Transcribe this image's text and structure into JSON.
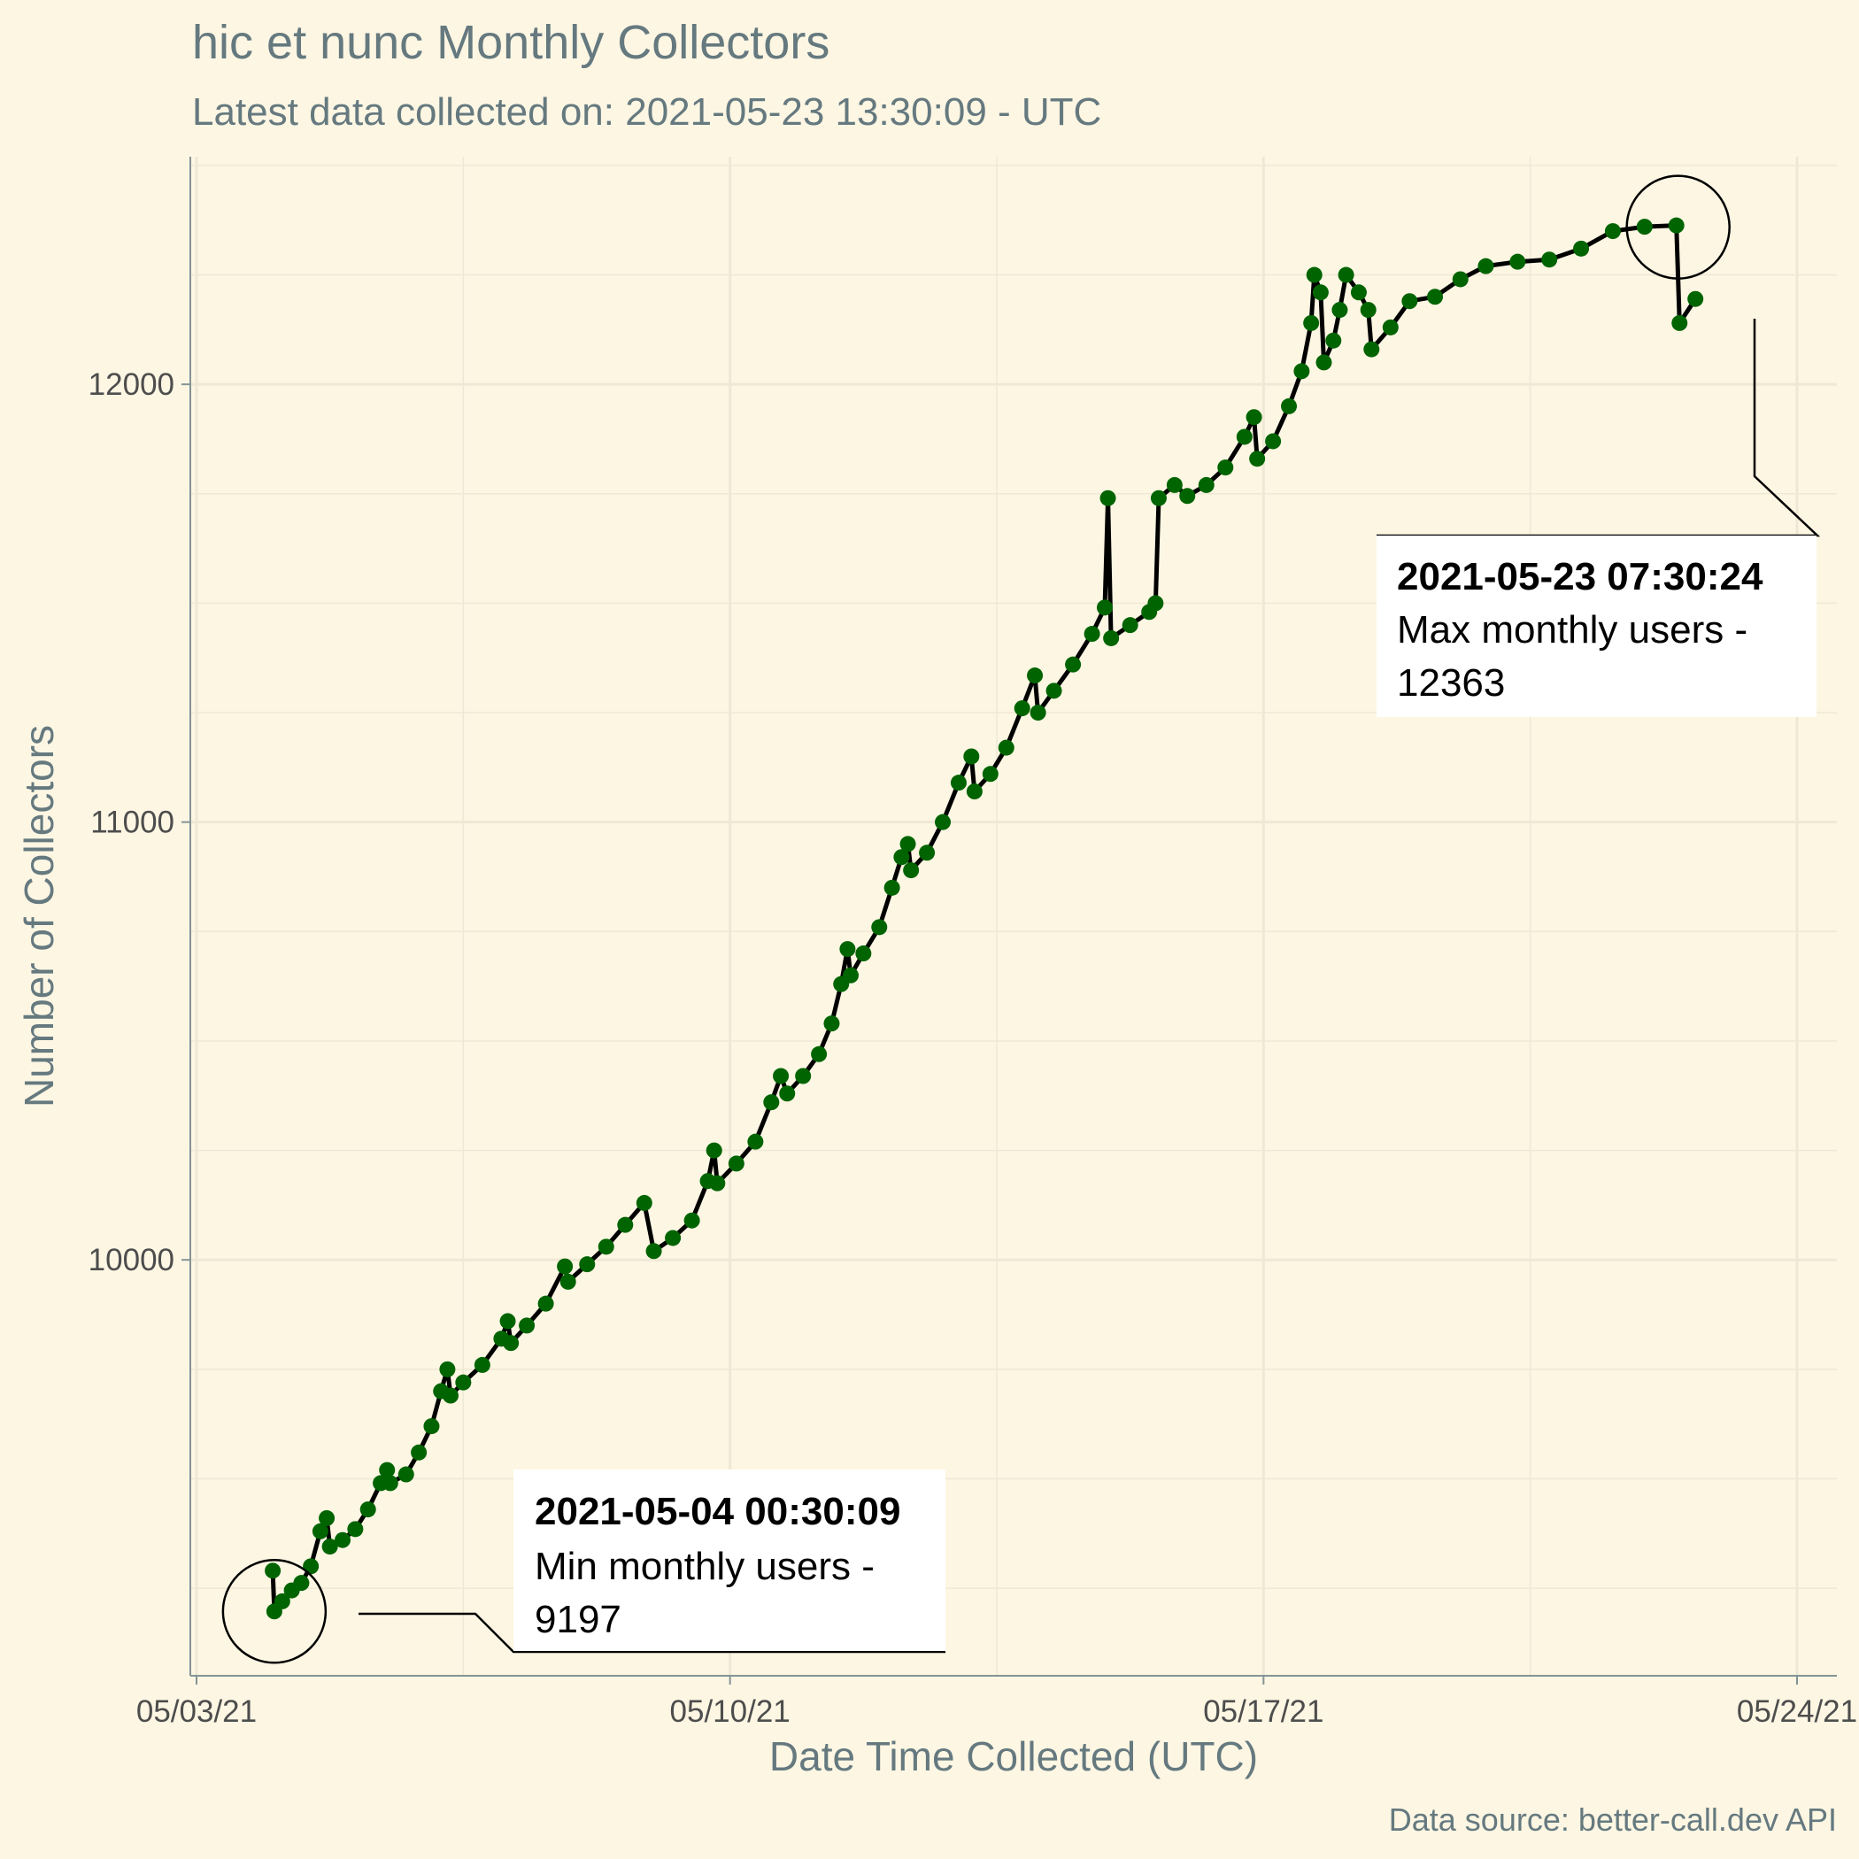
{
  "chart_data": {
    "type": "line",
    "title": "hic et nunc Monthly Collectors",
    "subtitle": "Latest data collected on: 2021-05-23 13:30:09  - UTC",
    "xlabel": "Date Time Collected (UTC)",
    "ylabel": "Number of Collectors",
    "caption": "Data source: better-call.dev API",
    "x_ticks": [
      "05/03/21",
      "05/10/21",
      "05/17/21",
      "05/24/21"
    ],
    "y_ticks": [
      10000,
      11000,
      12000
    ],
    "xlim": [
      "2021-05-03",
      "2021-05-24"
    ],
    "ylim": [
      9050,
      12520
    ],
    "grid": true,
    "colors": {
      "background": "#fdf6e3",
      "points": "#006400",
      "line": "#000000",
      "text_muted": "#65797f",
      "grid": "#eee8d5"
    },
    "series": [
      {
        "points": [
          [
            "2021-05-04 00:00",
            9290
          ],
          [
            "2021-05-04 00:30",
            9197
          ],
          [
            "2021-05-04 03:00",
            9220
          ],
          [
            "2021-05-04 06:00",
            9245
          ],
          [
            "2021-05-04 09:00",
            9262
          ],
          [
            "2021-05-04 12:00",
            9300
          ],
          [
            "2021-05-04 15:00",
            9380
          ],
          [
            "2021-05-04 17:00",
            9410
          ],
          [
            "2021-05-04 18:00",
            9345
          ],
          [
            "2021-05-04 22:00",
            9360
          ],
          [
            "2021-05-05 02:00",
            9385
          ],
          [
            "2021-05-05 06:00",
            9430
          ],
          [
            "2021-05-05 10:00",
            9490
          ],
          [
            "2021-05-05 12:00",
            9520
          ],
          [
            "2021-05-05 13:00",
            9490
          ],
          [
            "2021-05-05 18:00",
            9510
          ],
          [
            "2021-05-05 22:00",
            9560
          ],
          [
            "2021-05-06 02:00",
            9620
          ],
          [
            "2021-05-06 05:00",
            9700
          ],
          [
            "2021-05-06 07:00",
            9750
          ],
          [
            "2021-05-06 08:00",
            9690
          ],
          [
            "2021-05-06 12:00",
            9720
          ],
          [
            "2021-05-06 18:00",
            9760
          ],
          [
            "2021-05-07 00:00",
            9820
          ],
          [
            "2021-05-07 02:00",
            9860
          ],
          [
            "2021-05-07 03:00",
            9810
          ],
          [
            "2021-05-07 08:00",
            9850
          ],
          [
            "2021-05-07 14:00",
            9900
          ],
          [
            "2021-05-07 20:00",
            9985
          ],
          [
            "2021-05-07 21:00",
            9950
          ],
          [
            "2021-05-08 03:00",
            9990
          ],
          [
            "2021-05-08 09:00",
            10030
          ],
          [
            "2021-05-08 15:00",
            10080
          ],
          [
            "2021-05-08 21:00",
            10130
          ],
          [
            "2021-05-09 00:00",
            10020
          ],
          [
            "2021-05-09 06:00",
            10050
          ],
          [
            "2021-05-09 12:00",
            10090
          ],
          [
            "2021-05-09 17:00",
            10180
          ],
          [
            "2021-05-09 19:00",
            10250
          ],
          [
            "2021-05-09 20:00",
            10175
          ],
          [
            "2021-05-10 02:00",
            10220
          ],
          [
            "2021-05-10 08:00",
            10270
          ],
          [
            "2021-05-10 13:00",
            10360
          ],
          [
            "2021-05-10 16:00",
            10420
          ],
          [
            "2021-05-10 18:00",
            10380
          ],
          [
            "2021-05-10 23:00",
            10420
          ],
          [
            "2021-05-11 04:00",
            10470
          ],
          [
            "2021-05-11 08:00",
            10540
          ],
          [
            "2021-05-11 11:00",
            10630
          ],
          [
            "2021-05-11 13:00",
            10710
          ],
          [
            "2021-05-11 14:00",
            10650
          ],
          [
            "2021-05-11 18:00",
            10700
          ],
          [
            "2021-05-11 23:00",
            10760
          ],
          [
            "2021-05-12 03:00",
            10850
          ],
          [
            "2021-05-12 06:00",
            10920
          ],
          [
            "2021-05-12 08:00",
            10950
          ],
          [
            "2021-05-12 09:00",
            10890
          ],
          [
            "2021-05-12 14:00",
            10930
          ],
          [
            "2021-05-12 19:00",
            11000
          ],
          [
            "2021-05-13 00:00",
            11090
          ],
          [
            "2021-05-13 04:00",
            11150
          ],
          [
            "2021-05-13 05:00",
            11070
          ],
          [
            "2021-05-13 10:00",
            11110
          ],
          [
            "2021-05-13 15:00",
            11170
          ],
          [
            "2021-05-13 20:00",
            11260
          ],
          [
            "2021-05-14 00:00",
            11335
          ],
          [
            "2021-05-14 01:00",
            11250
          ],
          [
            "2021-05-14 06:00",
            11300
          ],
          [
            "2021-05-14 12:00",
            11360
          ],
          [
            "2021-05-14 18:00",
            11430
          ],
          [
            "2021-05-14 22:00",
            11490
          ],
          [
            "2021-05-14 23:00",
            11740
          ],
          [
            "2021-05-15 00:00",
            11420
          ],
          [
            "2021-05-15 06:00",
            11450
          ],
          [
            "2021-05-15 12:00",
            11480
          ],
          [
            "2021-05-15 14:00",
            11500
          ],
          [
            "2021-05-15 15:00",
            11740
          ],
          [
            "2021-05-15 20:00",
            11770
          ],
          [
            "2021-05-16 00:00",
            11745
          ],
          [
            "2021-05-16 06:00",
            11770
          ],
          [
            "2021-05-16 12:00",
            11810
          ],
          [
            "2021-05-16 18:00",
            11880
          ],
          [
            "2021-05-16 21:00",
            11925
          ],
          [
            "2021-05-16 22:00",
            11830
          ],
          [
            "2021-05-17 03:00",
            11870
          ],
          [
            "2021-05-17 08:00",
            11950
          ],
          [
            "2021-05-17 12:00",
            12030
          ],
          [
            "2021-05-17 15:00",
            12140
          ],
          [
            "2021-05-17 16:00",
            12250
          ],
          [
            "2021-05-17 18:00",
            12210
          ],
          [
            "2021-05-17 19:00",
            12050
          ],
          [
            "2021-05-17 22:00",
            12100
          ],
          [
            "2021-05-18 00:00",
            12170
          ],
          [
            "2021-05-18 02:00",
            12250
          ],
          [
            "2021-05-18 06:00",
            12210
          ],
          [
            "2021-05-18 09:00",
            12170
          ],
          [
            "2021-05-18 10:00",
            12080
          ],
          [
            "2021-05-18 16:00",
            12130
          ],
          [
            "2021-05-18 22:00",
            12190
          ],
          [
            "2021-05-19 06:00",
            12200
          ],
          [
            "2021-05-19 14:00",
            12240
          ],
          [
            "2021-05-19 22:00",
            12270
          ],
          [
            "2021-05-20 08:00",
            12280
          ],
          [
            "2021-05-20 18:00",
            12285
          ],
          [
            "2021-05-21 04:00",
            12310
          ],
          [
            "2021-05-21 14:00",
            12350
          ],
          [
            "2021-05-22 00:00",
            12360
          ],
          [
            "2021-05-22 10:00",
            12363
          ],
          [
            "2021-05-22 11:00",
            12140
          ],
          [
            "2021-05-22 16:00",
            12195
          ]
        ]
      }
    ],
    "annotations": [
      {
        "kind": "min",
        "timestamp": "2021-05-04 00:30:09",
        "label": "Min monthly users -",
        "value": "9197",
        "point": [
          "2021-05-04 00:30",
          9197
        ]
      },
      {
        "kind": "max",
        "timestamp": "2021-05-23 07:30:24",
        "label": "Max monthly users -",
        "value": "12363",
        "point": [
          "2021-05-22 10:00",
          12363
        ]
      }
    ]
  }
}
